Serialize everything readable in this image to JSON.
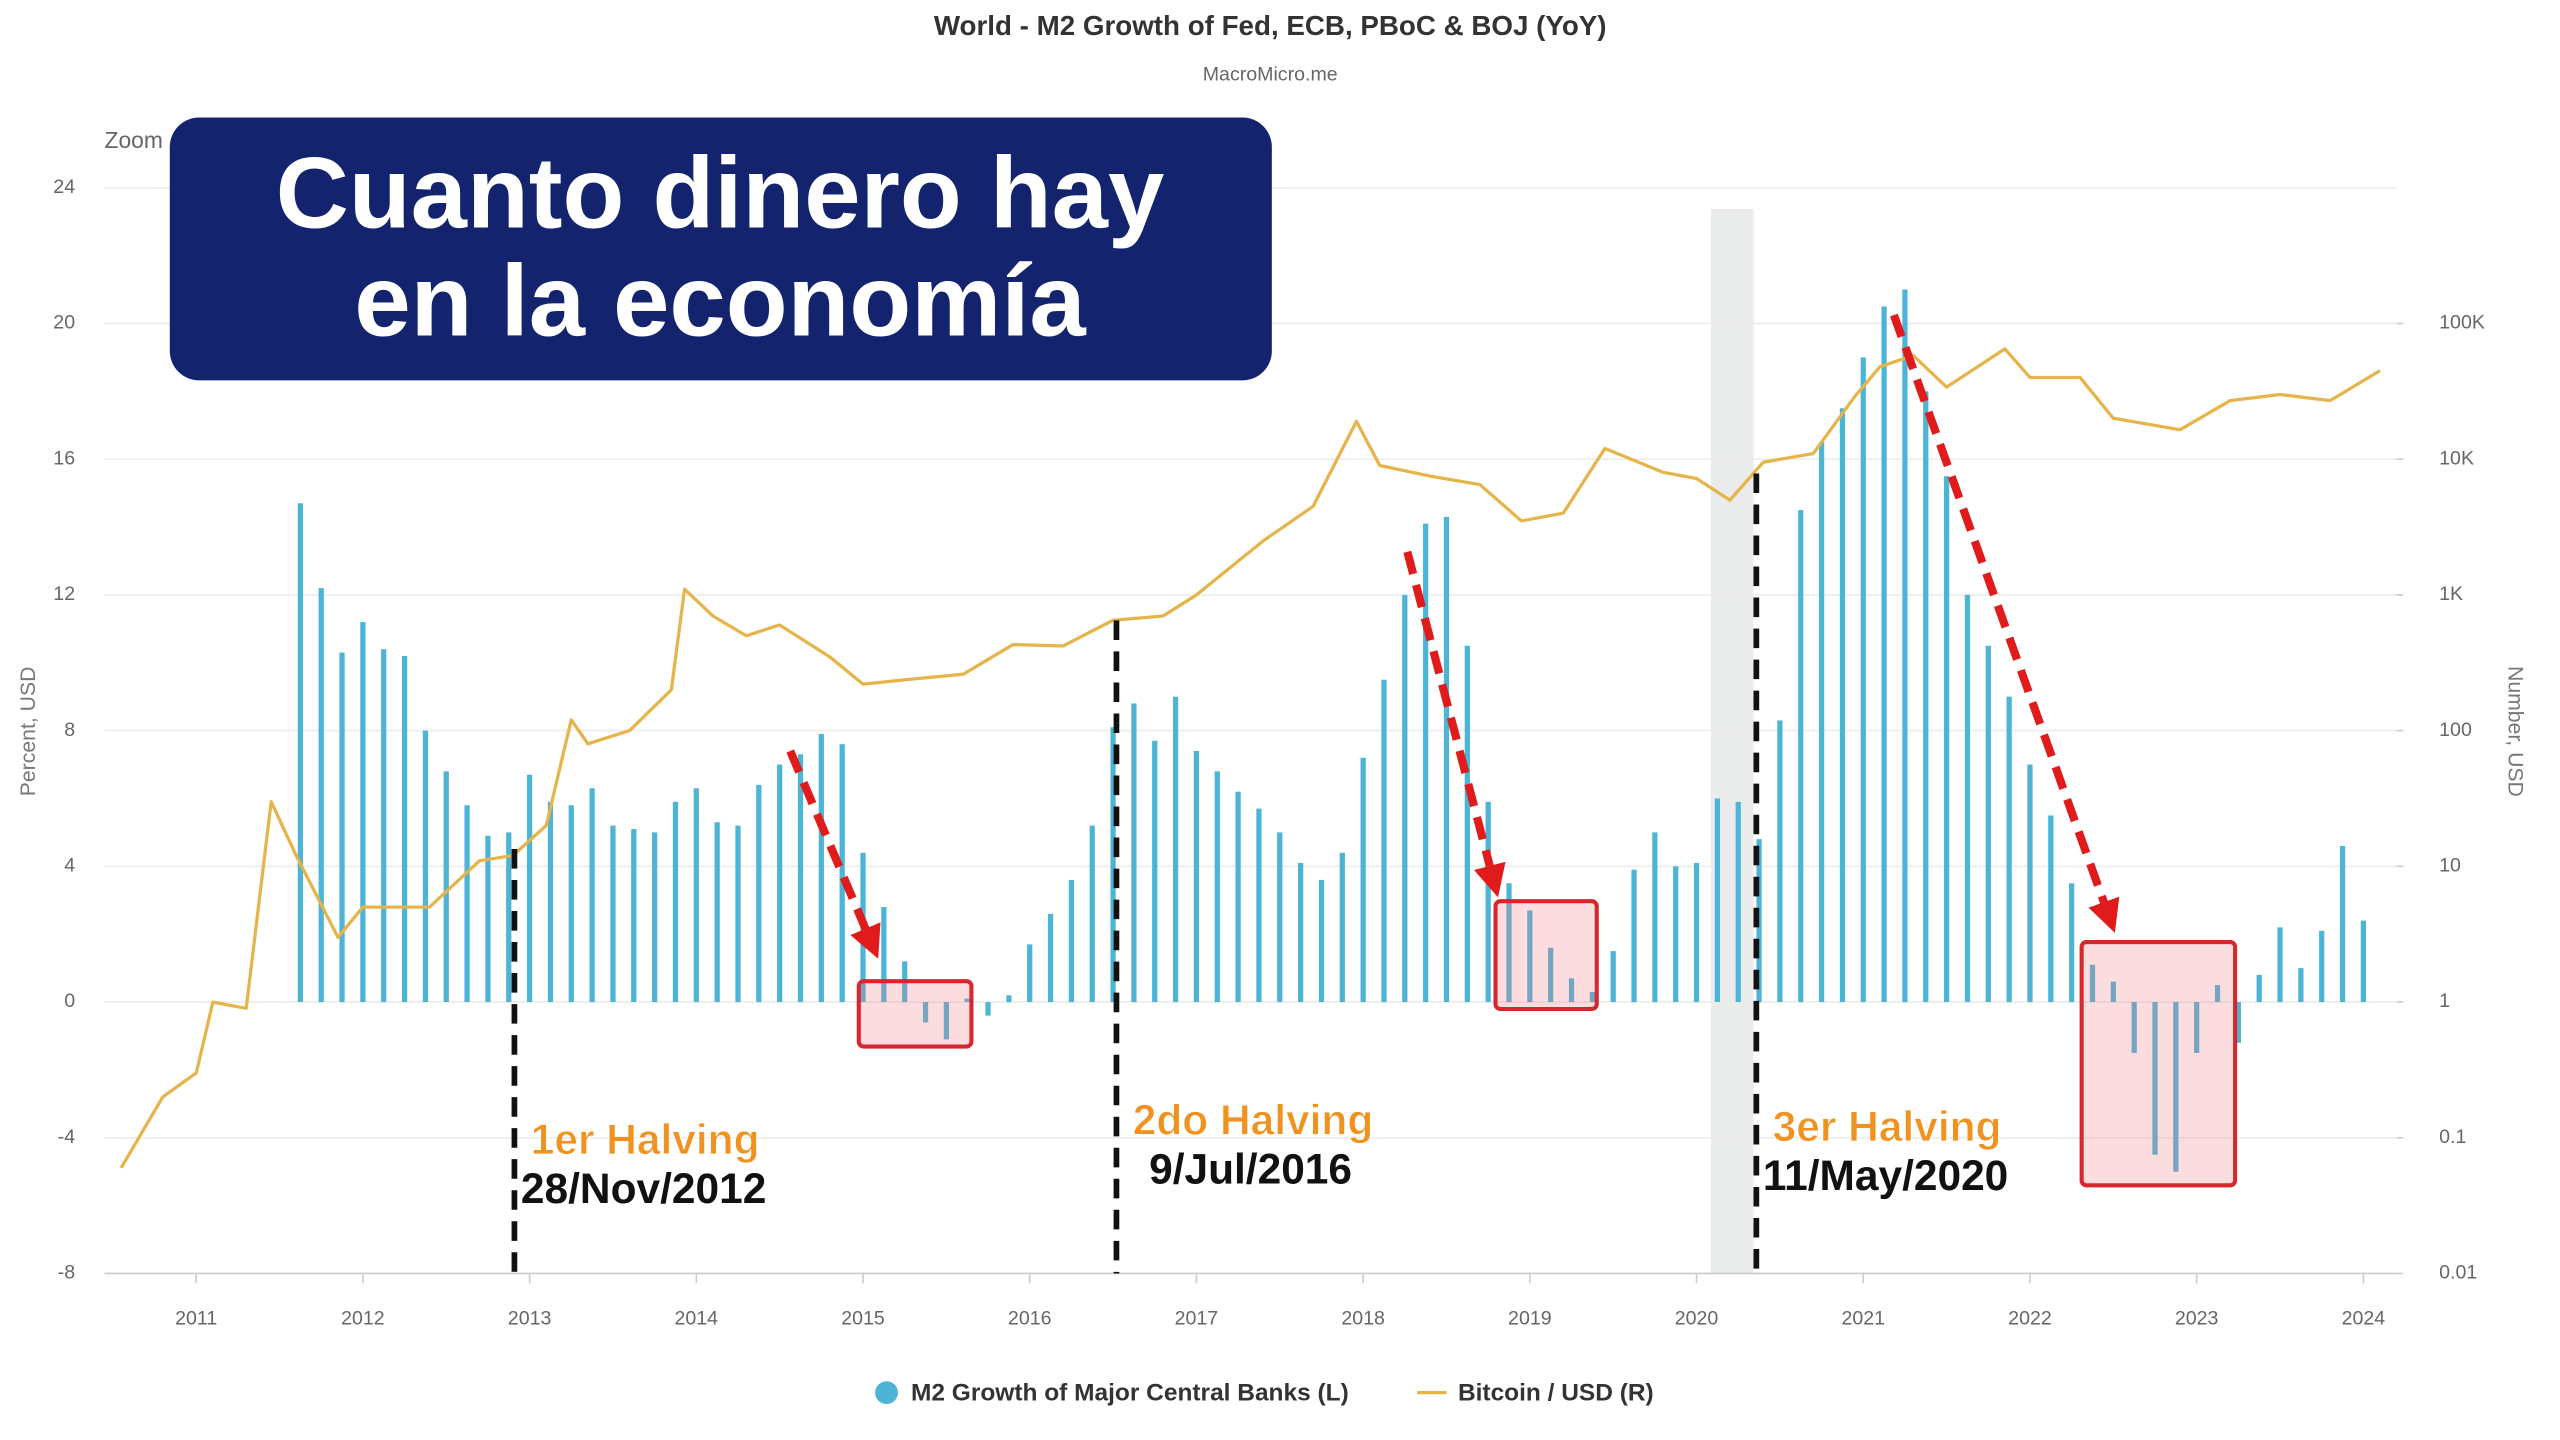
{
  "chart_data": {
    "type": "bar_line",
    "title": "World - M2 Growth of Fed, ECB, PBoC & BOJ (YoY)",
    "subtitle": "MacroMicro.me",
    "zoom_label": "Zoom",
    "overlay_title": [
      "Cuanto dinero hay",
      "en la economía"
    ],
    "y_label": "Percent, USD",
    "y2_label": "Number, USD",
    "xlim": [
      2010.45,
      2024.2
    ],
    "xticks": [
      2011,
      2012,
      2013,
      2014,
      2015,
      2016,
      2017,
      2018,
      2019,
      2020,
      2021,
      2022,
      2023,
      2024
    ],
    "ylim": [
      -8,
      24
    ],
    "yticks": [
      -8,
      -4,
      0,
      4,
      8,
      12,
      16,
      20,
      24
    ],
    "y2lim": [
      0.01,
      1000000
    ],
    "y2log": true,
    "y2ticks": [
      0.01,
      0.1,
      1,
      10,
      100,
      {
        "value": 1000,
        "label": "1K"
      },
      {
        "value": 10000,
        "label": "10K"
      },
      {
        "value": 100000,
        "label": "100K"
      }
    ],
    "grid": true,
    "legend": "bottom",
    "series": [
      {
        "name": "M2 Growth of Major Central Banks (L)",
        "color": "#4cb4d4",
        "type": "bar",
        "x": [
          2011.625,
          2011.75,
          2011.875,
          2012.0,
          2012.125,
          2012.25,
          2012.375,
          2012.5,
          2012.625,
          2012.75,
          2012.875,
          2013.0,
          2013.125,
          2013.25,
          2013.375,
          2013.5,
          2013.625,
          2013.75,
          2013.875,
          2014.0,
          2014.125,
          2014.25,
          2014.375,
          2014.5,
          2014.625,
          2014.75,
          2014.875,
          2015.0,
          2015.125,
          2015.25,
          2015.375,
          2015.5,
          2015.625,
          2015.75,
          2015.875,
          2016.0,
          2016.125,
          2016.25,
          2016.375,
          2016.5,
          2016.625,
          2016.75,
          2016.875,
          2017.0,
          2017.125,
          2017.25,
          2017.375,
          2017.5,
          2017.625,
          2017.75,
          2017.875,
          2018.0,
          2018.125,
          2018.25,
          2018.375,
          2018.5,
          2018.625,
          2018.75,
          2018.875,
          2019.0,
          2019.125,
          2019.25,
          2019.375,
          2019.5,
          2019.625,
          2019.75,
          2019.875,
          2020.0,
          2020.125,
          2020.25,
          2020.375,
          2020.5,
          2020.625,
          2020.75,
          2020.875,
          2021.0,
          2021.125,
          2021.25,
          2021.375,
          2021.5,
          2021.625,
          2021.75,
          2021.875,
          2022.0,
          2022.125,
          2022.25,
          2022.375,
          2022.5,
          2022.625,
          2022.75,
          2022.875,
          2023.0,
          2023.125,
          2023.25,
          2023.375,
          2023.5,
          2023.625,
          2023.75,
          2023.875,
          2024.0
        ],
        "values": [
          14.7,
          12.2,
          10.3,
          11.2,
          10.4,
          10.2,
          8.0,
          6.8,
          5.8,
          4.9,
          5.0,
          6.7,
          5.9,
          5.8,
          6.3,
          5.2,
          5.1,
          5.0,
          5.9,
          6.3,
          5.3,
          5.2,
          6.4,
          7.0,
          7.3,
          7.9,
          7.6,
          4.4,
          2.8,
          1.2,
          -0.6,
          -1.1,
          0.1,
          -0.4,
          0.2,
          1.7,
          2.6,
          3.6,
          5.2,
          8.1,
          8.8,
          7.7,
          9.0,
          7.4,
          6.8,
          6.2,
          5.7,
          5.0,
          4.1,
          3.6,
          4.4,
          7.2,
          9.5,
          12.0,
          14.1,
          14.3,
          10.5,
          5.9,
          3.5,
          2.7,
          1.6,
          0.7,
          0.3,
          1.5,
          3.9,
          5.0,
          4.0,
          4.1,
          6.0,
          5.9,
          4.8,
          8.3,
          14.5,
          16.5,
          17.5,
          19.0,
          20.5,
          21.0,
          18.0,
          15.5,
          12.0,
          10.5,
          9.0,
          7.0,
          5.5,
          3.5,
          1.1,
          0.6,
          -1.5,
          -4.5,
          -5.0,
          -1.5,
          0.5,
          -1.2,
          0.8,
          2.2,
          1.0,
          2.1,
          4.6,
          2.4
        ]
      },
      {
        "name": "Bitcoin / USD (R)",
        "color": "#e5b44a",
        "type": "line",
        "axis": "y2",
        "x": [
          2010.55,
          2010.8,
          2011.0,
          2011.1,
          2011.3,
          2011.45,
          2011.6,
          2011.85,
          2012.0,
          2012.4,
          2012.7,
          2012.9,
          2013.1,
          2013.25,
          2013.35,
          2013.6,
          2013.85,
          2013.93,
          2014.1,
          2014.3,
          2014.5,
          2014.8,
          2015.0,
          2015.3,
          2015.6,
          2015.9,
          2016.2,
          2016.5,
          2016.8,
          2017.0,
          2017.4,
          2017.7,
          2017.96,
          2018.1,
          2018.4,
          2018.7,
          2018.95,
          2019.2,
          2019.45,
          2019.8,
          2020.0,
          2020.2,
          2020.4,
          2020.7,
          2020.95,
          2021.1,
          2021.3,
          2021.5,
          2021.85,
          2022.0,
          2022.3,
          2022.5,
          2022.9,
          2023.2,
          2023.5,
          2023.8,
          2024.1
        ],
        "values": [
          0.06,
          0.2,
          0.3,
          1,
          0.9,
          30,
          12,
          3,
          5,
          5,
          11,
          12,
          20,
          120,
          80,
          100,
          200,
          1100,
          700,
          500,
          600,
          350,
          220,
          240,
          260,
          430,
          420,
          650,
          700,
          1000,
          2500,
          4500,
          19000,
          9000,
          7500,
          6500,
          3500,
          4000,
          12000,
          8000,
          7200,
          5000,
          9500,
          11000,
          29000,
          48000,
          58000,
          34000,
          65000,
          40000,
          40000,
          20000,
          16500,
          27000,
          30000,
          27000,
          45000
        ]
      }
    ],
    "annotations": [
      {
        "label": "1er Halving",
        "date": "28/Nov/2012"
      },
      {
        "label": "2do Halving",
        "date": "9/Jul/2016"
      },
      {
        "label": "3er Halving",
        "date": "11/May/2020"
      }
    ]
  }
}
